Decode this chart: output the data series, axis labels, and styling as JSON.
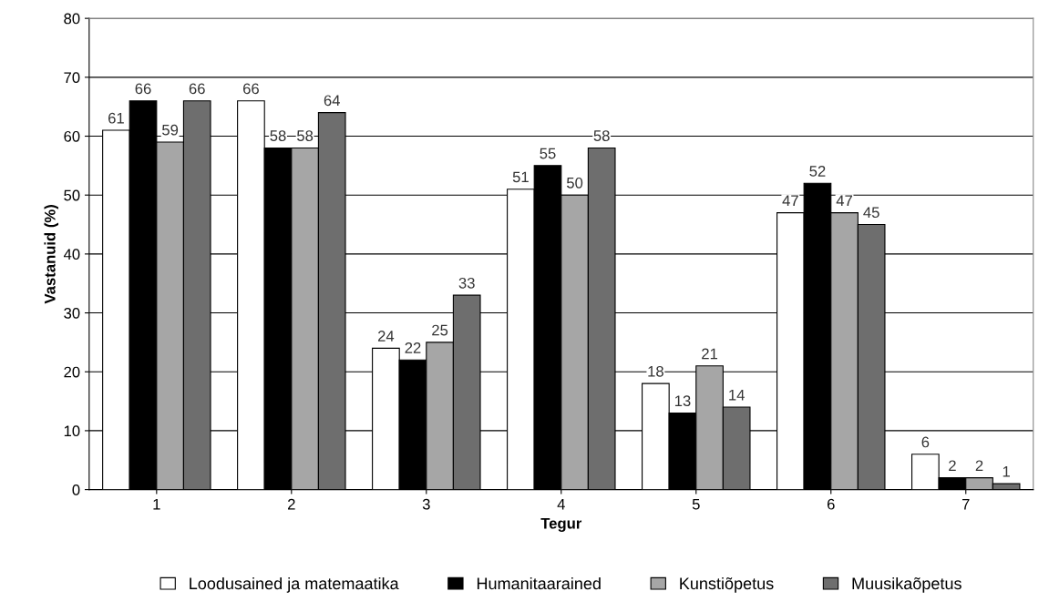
{
  "chart_data": {
    "type": "bar",
    "xlabel": "Tegur",
    "ylabel": "Vastanuid (%)",
    "categories": [
      "1",
      "2",
      "3",
      "4",
      "5",
      "6",
      "7"
    ],
    "series": [
      {
        "name": "Loodusained ja matemaatika",
        "color": "#ffffff",
        "values": [
          61,
          66,
          24,
          51,
          18,
          47,
          6
        ]
      },
      {
        "name": "Humanitaarained",
        "color": "#000000",
        "values": [
          66,
          58,
          22,
          55,
          13,
          52,
          2
        ]
      },
      {
        "name": "Kunstiõpetus",
        "color": "#a6a6a6",
        "values": [
          59,
          58,
          25,
          50,
          21,
          47,
          2
        ]
      },
      {
        "name": "Muusikaõpetus",
        "color": "#6e6e6e",
        "values": [
          66,
          64,
          33,
          58,
          14,
          45,
          1
        ]
      }
    ],
    "ylim": [
      0,
      80
    ],
    "yticks": [
      0,
      10,
      20,
      30,
      40,
      50,
      60,
      70,
      80
    ],
    "grid": "y",
    "legend": "bottom",
    "data_labels": true
  }
}
